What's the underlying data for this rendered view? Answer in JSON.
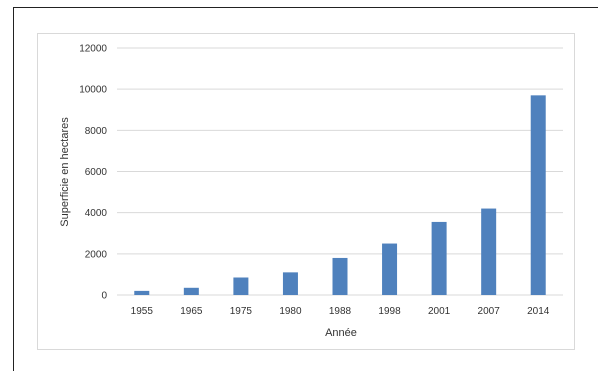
{
  "chart_data": {
    "type": "bar",
    "categories": [
      "1955",
      "1965",
      "1975",
      "1980",
      "1988",
      "1998",
      "2001",
      "2007",
      "2014"
    ],
    "values": [
      200,
      350,
      850,
      1100,
      1800,
      2500,
      3550,
      4200,
      9700
    ],
    "xlabel": "Année",
    "ylabel": "Superficie en hectares",
    "ylim": [
      0,
      12000
    ],
    "yticks": [
      0,
      2000,
      4000,
      6000,
      8000,
      10000,
      12000
    ],
    "grid": true,
    "legend": "none",
    "bar_color": "#4f81bd",
    "grid_color": "#d9d9d9"
  }
}
